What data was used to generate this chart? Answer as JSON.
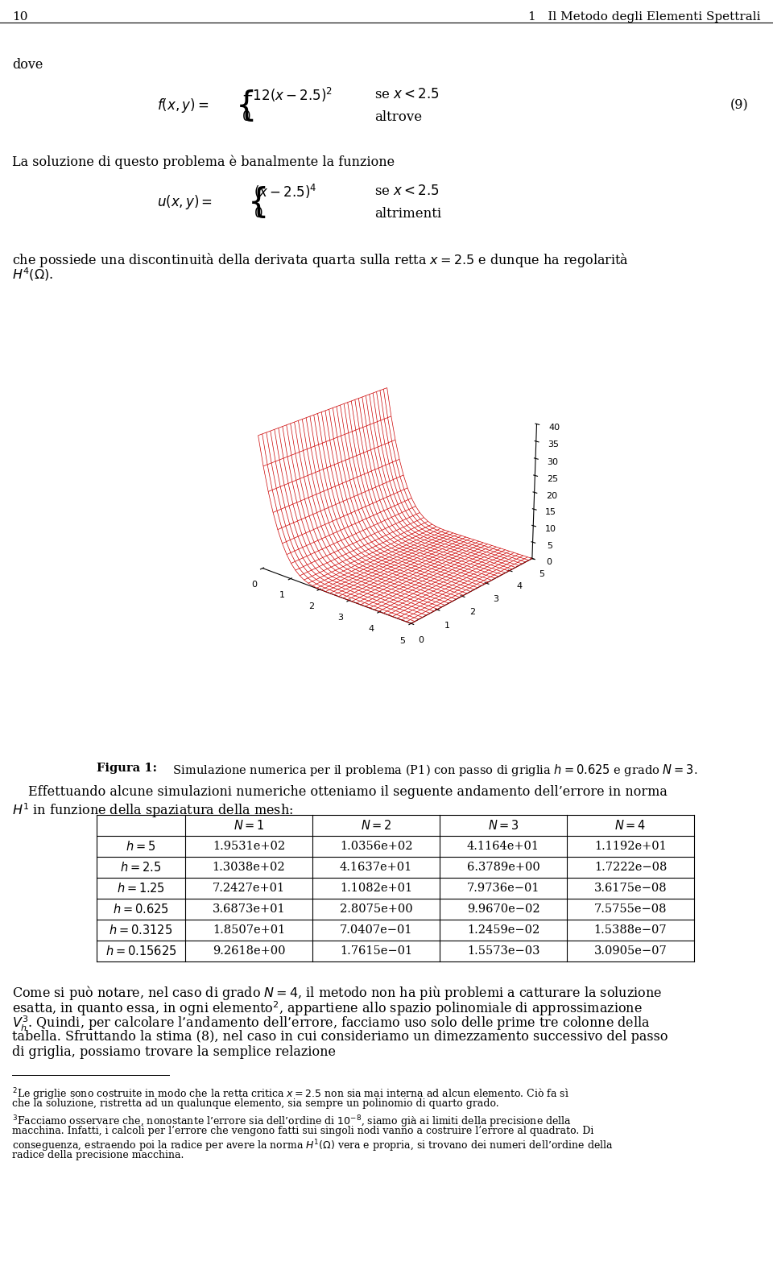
{
  "page_number": "10",
  "header_title": "1   Il Metodo degli Elementi Spettrali",
  "text_dove": "dove",
  "text_la_soluzione": "La soluzione di questo problema è banalmente la funzione",
  "figura_caption_bold": "Figura 1:",
  "figura_caption_rest": " Simulazione numerica per il problema (P1) con passo di griglia h = 0.625 e grado N = 3.",
  "table_headers": [
    "",
    "N = 1",
    "N = 2",
    "N = 3",
    "N = 4"
  ],
  "table_rows": [
    [
      "h = 5",
      "1.9531e+02",
      "1.0356e+02",
      "4.1164e+01",
      "1.1192e+01"
    ],
    [
      "h = 2.5",
      "1.3038e+02",
      "4.1637e+01",
      "6.3789e+00",
      "1.7222e−08"
    ],
    [
      "h = 1.25",
      "7.2427e+01",
      "1.1082e+01",
      "7.9736e−01",
      "3.6175e−08"
    ],
    [
      "h = 0.625",
      "3.6873e+01",
      "2.8075e+00",
      "9.9670e−02",
      "7.5755e−08"
    ],
    [
      "h = 0.3125",
      "1.8507e+01",
      "7.0407e−01",
      "1.2459e−02",
      "1.5388e−07"
    ],
    [
      "h = 0.15625",
      "9.2618e+00",
      "1.7615e−01",
      "1.5573e−03",
      "3.0905e−07"
    ]
  ],
  "surface_color": "#cc0000",
  "background_color": "#ffffff",
  "text_color": "#000000"
}
